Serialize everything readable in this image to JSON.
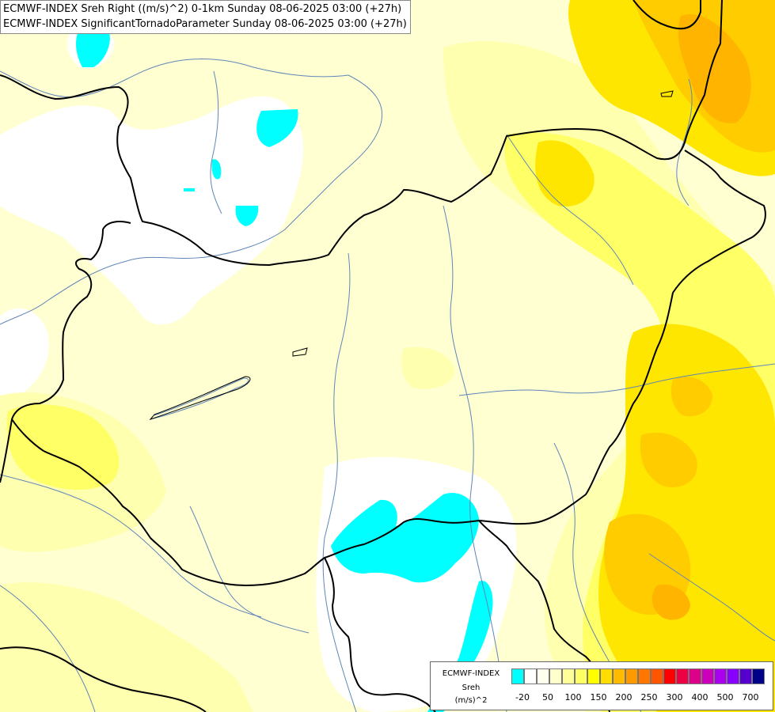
{
  "titles": [
    "ECMWF-INDEX Sreh Right ((m/s)^2) 0-1km Sunday 08-06-2025 03:00 (+27h)",
    "ECMWF-INDEX SignificantTornadoParameter Sunday 08-06-2025 03:00 (+27h)"
  ],
  "legend": {
    "title_line1": "ECMWF-INDEX",
    "title_line2": "Sreh",
    "title_line3": "(m/s)^2",
    "tick_labels": [
      "-20",
      "50",
      "100",
      "150",
      "200",
      "250",
      "300",
      "400",
      "500",
      "700"
    ],
    "colors": [
      "#00ffff",
      "#ffffff",
      "#fffff0",
      "#ffffcc",
      "#ffff99",
      "#ffff66",
      "#ffff00",
      "#ffdd00",
      "#ffbb00",
      "#ff9900",
      "#ff7700",
      "#ff5500",
      "#ff0000",
      "#ee0044",
      "#dd0088",
      "#cc00bb",
      "#aa00ee",
      "#8800ff",
      "#5500cc",
      "#000088"
    ]
  },
  "field_colors": {
    "white": "#ffffff",
    "pale": "#ffffd2",
    "light": "#ffffb0",
    "yellow": "#ffff66",
    "gold": "#ffe600",
    "orange": "#ffcc00",
    "deep": "#ffb400",
    "cyan": "#00ffff"
  }
}
